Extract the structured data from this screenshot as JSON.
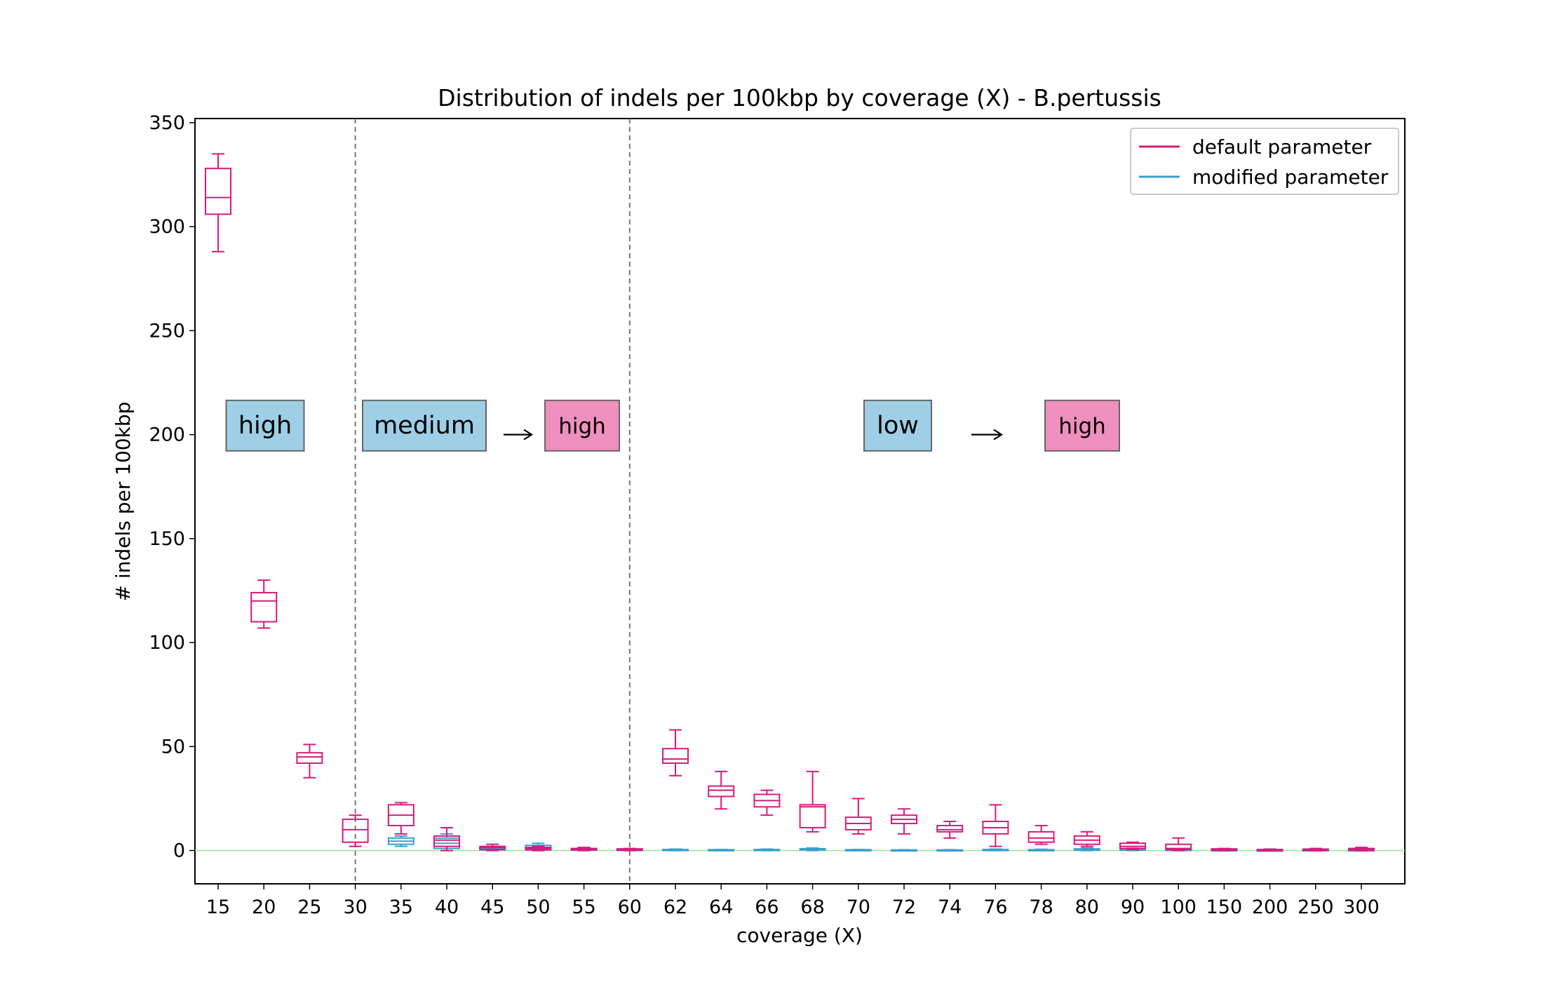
{
  "chart_data": {
    "type": "boxplot",
    "title": "Distribution of indels per 100kbp by coverage (X) - B.pertussis",
    "xlabel": "coverage (X)",
    "ylabel": "# indels per 100kbp",
    "ylim": [
      -16,
      352
    ],
    "yticks": [
      0,
      50,
      100,
      150,
      200,
      250,
      300,
      350
    ],
    "categories": [
      "15",
      "20",
      "25",
      "30",
      "35",
      "40",
      "45",
      "50",
      "55",
      "60",
      "62",
      "64",
      "66",
      "68",
      "70",
      "72",
      "74",
      "76",
      "78",
      "80",
      "90",
      "100",
      "150",
      "200",
      "250",
      "300"
    ],
    "reference_line": {
      "y": 0,
      "color": "#90ee90"
    },
    "divider_lines_after": [
      "30",
      "60"
    ],
    "legend": {
      "position": "top-right"
    },
    "series": [
      {
        "name": "default parameter",
        "color": "#d81b7b",
        "boxes": [
          {
            "whislo": 288,
            "q1": 306,
            "med": 314,
            "q3": 328,
            "whishi": 335
          },
          {
            "whislo": 107,
            "q1": 110,
            "med": 120,
            "q3": 124,
            "whishi": 130
          },
          {
            "whislo": 35,
            "q1": 42,
            "med": 45,
            "q3": 47,
            "whishi": 51
          },
          {
            "whislo": 2,
            "q1": 4,
            "med": 10,
            "q3": 15,
            "whishi": 17
          },
          {
            "whislo": 8,
            "q1": 12,
            "med": 17,
            "q3": 22,
            "whishi": 23
          },
          {
            "whislo": 0,
            "q1": 2,
            "med": 5,
            "q3": 7,
            "whishi": 11
          },
          {
            "whislo": 0,
            "q1": 0.5,
            "med": 1.5,
            "q3": 2,
            "whishi": 3
          },
          {
            "whislo": 0,
            "q1": 0.3,
            "med": 1,
            "q3": 1.5,
            "whishi": 2
          },
          {
            "whislo": 0,
            "q1": 0.3,
            "med": 0.7,
            "q3": 1,
            "whishi": 1.5
          },
          {
            "whislo": 0,
            "q1": 0.2,
            "med": 0.5,
            "q3": 0.8,
            "whishi": 1
          },
          {
            "whislo": 36,
            "q1": 42,
            "med": 44,
            "q3": 49,
            "whishi": 58
          },
          {
            "whislo": 20,
            "q1": 26,
            "med": 29,
            "q3": 31,
            "whishi": 38
          },
          {
            "whislo": 17,
            "q1": 21,
            "med": 24,
            "q3": 27,
            "whishi": 29
          },
          {
            "whislo": 9,
            "q1": 11,
            "med": 21,
            "q3": 22,
            "whishi": 38
          },
          {
            "whislo": 8,
            "q1": 10,
            "med": 13,
            "q3": 16,
            "whishi": 25
          },
          {
            "whislo": 8,
            "q1": 13,
            "med": 15,
            "q3": 17,
            "whishi": 20
          },
          {
            "whislo": 6,
            "q1": 9,
            "med": 10,
            "q3": 12,
            "whishi": 14
          },
          {
            "whislo": 2,
            "q1": 8,
            "med": 11,
            "q3": 14,
            "whishi": 22
          },
          {
            "whislo": 3,
            "q1": 4,
            "med": 6,
            "q3": 9,
            "whishi": 12
          },
          {
            "whislo": 2,
            "q1": 3,
            "med": 5,
            "q3": 7,
            "whishi": 9
          },
          {
            "whislo": 0.5,
            "q1": 1,
            "med": 2,
            "q3": 3.5,
            "whishi": 4
          },
          {
            "whislo": 0,
            "q1": 0.5,
            "med": 1,
            "q3": 3,
            "whishi": 6
          },
          {
            "whislo": 0,
            "q1": 0.2,
            "med": 0.5,
            "q3": 0.8,
            "whishi": 1
          },
          {
            "whislo": 0,
            "q1": 0.1,
            "med": 0.3,
            "q3": 0.5,
            "whishi": 0.7
          },
          {
            "whislo": 0,
            "q1": 0.2,
            "med": 0.4,
            "q3": 0.7,
            "whishi": 1
          },
          {
            "whislo": 0,
            "q1": 0.2,
            "med": 0.5,
            "q3": 1,
            "whishi": 1.5
          }
        ]
      },
      {
        "name": "modified parameter",
        "color": "#3b9fcb",
        "boxes": [
          null,
          null,
          null,
          null,
          {
            "whislo": 2,
            "q1": 3,
            "med": 4.5,
            "q3": 6,
            "whishi": 7
          },
          {
            "whislo": 0,
            "q1": 1,
            "med": 3.5,
            "q3": 6,
            "whishi": 8
          },
          {
            "whislo": 0,
            "q1": 0.3,
            "med": 0.7,
            "q3": 1,
            "whishi": 1.5
          },
          {
            "whislo": 0,
            "q1": 0.5,
            "med": 1.5,
            "q3": 2.5,
            "whishi": 3.5
          },
          {
            "whislo": 0,
            "q1": 0.2,
            "med": 0.5,
            "q3": 0.7,
            "whishi": 1
          },
          {
            "whislo": 0,
            "q1": 0.1,
            "med": 0.3,
            "q3": 0.5,
            "whishi": 0.6
          },
          {
            "whislo": 0,
            "q1": 0.1,
            "med": 0.3,
            "q3": 0.5,
            "whishi": 0.7
          },
          {
            "whislo": 0,
            "q1": 0.1,
            "med": 0.2,
            "q3": 0.4,
            "whishi": 0.5
          },
          {
            "whislo": 0,
            "q1": 0.1,
            "med": 0.3,
            "q3": 0.5,
            "whishi": 0.7
          },
          {
            "whislo": 0,
            "q1": 0.3,
            "med": 0.6,
            "q3": 0.9,
            "whishi": 1.2
          },
          {
            "whislo": 0,
            "q1": 0.1,
            "med": 0.2,
            "q3": 0.4,
            "whishi": 0.5
          },
          {
            "whislo": 0,
            "q1": 0.1,
            "med": 0.2,
            "q3": 0.3,
            "whishi": 0.4
          },
          {
            "whislo": 0,
            "q1": 0.1,
            "med": 0.2,
            "q3": 0.3,
            "whishi": 0.4
          },
          {
            "whislo": 0,
            "q1": 0.1,
            "med": 0.3,
            "q3": 0.5,
            "whishi": 0.7
          },
          {
            "whislo": 0,
            "q1": 0.1,
            "med": 0.2,
            "q3": 0.4,
            "whishi": 0.6
          },
          {
            "whislo": 0,
            "q1": 0.2,
            "med": 0.5,
            "q3": 0.8,
            "whishi": 1.2
          },
          {
            "whislo": 0,
            "q1": 0.2,
            "med": 0.5,
            "q3": 0.8,
            "whishi": 1.1
          },
          {
            "whislo": 0,
            "q1": 0.1,
            "med": 0.3,
            "q3": 0.5,
            "whishi": 0.7
          },
          {
            "whislo": 0,
            "q1": 0.1,
            "med": 0.2,
            "q3": 0.3,
            "whishi": 0.4
          },
          {
            "whislo": 0,
            "q1": 0.1,
            "med": 0.1,
            "q3": 0.2,
            "whishi": 0.3
          },
          {
            "whislo": 0,
            "q1": 0.1,
            "med": 0.2,
            "q3": 0.3,
            "whishi": 0.4
          },
          {
            "whislo": 0,
            "q1": 0.1,
            "med": 0.2,
            "q3": 0.3,
            "whishi": 0.4
          }
        ]
      }
    ],
    "annotations": [
      {
        "text": "high",
        "fill": "#9ecfe6",
        "anchor_category": "17.5",
        "y": 205
      },
      {
        "text": "medium",
        "fill": "#9ecfe6",
        "anchor_category": "40.5",
        "y": 205
      },
      {
        "text": "high",
        "fill": "#ee8fbd",
        "anchor_category": "54",
        "y": 205
      },
      {
        "text": "low",
        "fill": "#9ecfe6",
        "anchor_category": "74",
        "y": 205
      },
      {
        "text": "high",
        "fill": "#ee8fbd",
        "anchor_category": "80",
        "y": 205
      }
    ],
    "arrows": [
      {
        "text": "→",
        "y": 200
      },
      {
        "text": "→",
        "y": 200
      }
    ]
  }
}
